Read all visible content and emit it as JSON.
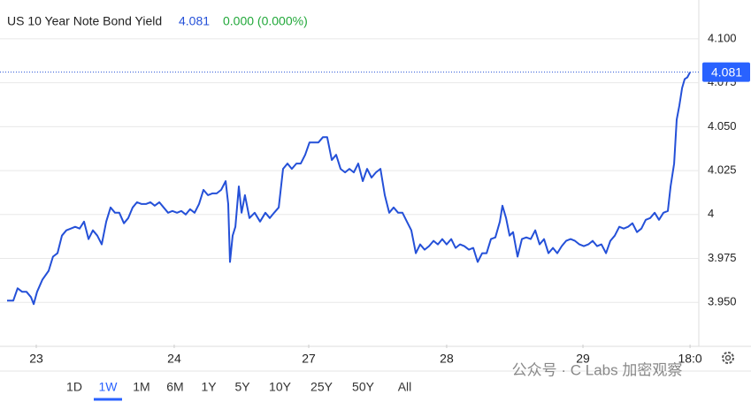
{
  "chart_data": {
    "type": "line",
    "title": "US 10 Year Note Bond Yield",
    "last_price": 4.081,
    "change": "0.000 (0.000%)",
    "x": [
      0,
      0.045,
      0.077,
      0.11,
      0.142,
      0.174,
      0.194,
      0.219,
      0.258,
      0.303,
      0.335,
      0.368,
      0.4,
      0.432,
      0.465,
      0.497,
      0.529,
      0.561,
      0.594,
      0.626,
      0.658,
      0.69,
      0.723,
      0.755,
      0.787,
      0.819,
      0.852,
      0.884,
      0.916,
      0.948,
      0.981,
      1.013,
      1.045,
      1.077,
      1.11,
      1.142,
      1.174,
      1.206,
      1.239,
      1.271,
      1.303,
      1.335,
      1.368,
      1.4,
      1.432,
      1.465,
      1.497,
      1.529,
      1.561,
      1.594,
      1.613,
      1.626,
      1.645,
      1.665,
      1.69,
      1.71,
      1.735,
      1.768,
      1.806,
      1.845,
      1.884,
      1.916,
      1.948,
      1.981,
      2.013,
      2.045,
      2.077,
      2.11,
      2.142,
      2.174,
      2.206,
      2.239,
      2.271,
      2.303,
      2.335,
      2.368,
      2.4,
      2.432,
      2.465,
      2.497,
      2.529,
      2.561,
      2.594,
      2.626,
      2.658,
      2.69,
      2.723,
      2.755,
      2.787,
      2.819,
      2.852,
      2.884,
      2.916,
      2.948,
      2.981,
      3.013,
      3.045,
      3.077,
      3.11,
      3.142,
      3.174,
      3.206,
      3.239,
      3.271,
      3.303,
      3.335,
      3.368,
      3.4,
      3.432,
      3.465,
      3.497,
      3.529,
      3.561,
      3.594,
      3.613,
      3.639,
      3.665,
      3.69,
      3.723,
      3.755,
      3.787,
      3.819,
      3.852,
      3.884,
      3.916,
      3.948,
      3.981,
      4.013,
      4.045,
      4.077,
      4.11,
      4.142,
      4.174,
      4.206,
      4.239,
      4.271,
      4.303,
      4.335,
      4.368,
      4.4,
      4.432,
      4.465,
      4.497,
      4.529,
      4.561,
      4.594,
      4.626,
      4.658,
      4.69,
      4.723,
      4.755,
      4.787,
      4.819,
      4.839,
      4.865,
      4.884,
      4.903,
      4.923,
      4.942,
      4.961,
      4.981
    ],
    "series": [
      {
        "color": "#2450d8",
        "values": [
          3.951,
          3.951,
          3.958,
          3.956,
          3.956,
          3.953,
          3.949,
          3.956,
          3.963,
          3.968,
          3.976,
          3.978,
          3.988,
          3.991,
          3.992,
          3.993,
          3.992,
          3.996,
          3.986,
          3.991,
          3.988,
          3.983,
          3.996,
          4.004,
          4.001,
          4.001,
          3.995,
          3.998,
          4.004,
          4.007,
          4.006,
          4.006,
          4.007,
          4.005,
          4.007,
          4.004,
          4.001,
          4.002,
          4.001,
          4.002,
          4.0,
          4.003,
          4.001,
          4.006,
          4.014,
          4.011,
          4.012,
          4.012,
          4.014,
          4.019,
          4.006,
          3.973,
          3.988,
          3.993,
          4.016,
          4.001,
          4.011,
          3.998,
          4.001,
          3.996,
          4.001,
          3.998,
          4.001,
          4.004,
          4.026,
          4.029,
          4.026,
          4.029,
          4.029,
          4.034,
          4.041,
          4.041,
          4.041,
          4.044,
          4.044,
          4.031,
          4.034,
          4.026,
          4.024,
          4.026,
          4.024,
          4.029,
          4.019,
          4.026,
          4.021,
          4.024,
          4.026,
          4.011,
          4.001,
          4.004,
          4.001,
          4.001,
          3.996,
          3.991,
          3.978,
          3.983,
          3.98,
          3.982,
          3.985,
          3.983,
          3.986,
          3.983,
          3.986,
          3.981,
          3.983,
          3.982,
          3.98,
          3.981,
          3.973,
          3.978,
          3.978,
          3.986,
          3.987,
          3.996,
          4.005,
          3.998,
          3.988,
          3.99,
          3.976,
          3.986,
          3.987,
          3.986,
          3.991,
          3.983,
          3.986,
          3.978,
          3.981,
          3.978,
          3.982,
          3.985,
          3.986,
          3.985,
          3.983,
          3.982,
          3.983,
          3.985,
          3.982,
          3.983,
          3.978,
          3.985,
          3.988,
          3.993,
          3.992,
          3.993,
          3.995,
          3.99,
          3.992,
          3.997,
          3.998,
          4.001,
          3.997,
          4.001,
          4.002,
          4.016,
          4.029,
          4.054,
          4.062,
          4.072,
          4.077,
          4.078,
          4.081
        ]
      }
    ],
    "xlim": [
      0,
      5.045
    ],
    "ylim": [
      3.926,
      4.112
    ],
    "xticks": [
      {
        "value": 0.213,
        "label": "23"
      },
      {
        "value": 1.219,
        "label": "24"
      },
      {
        "value": 2.2,
        "label": "27"
      },
      {
        "value": 3.206,
        "label": "28"
      },
      {
        "value": 4.2,
        "label": "29"
      },
      {
        "value": 4.981,
        "label": "18:0"
      }
    ],
    "yticks": [
      {
        "value": 3.95,
        "label": "3.950"
      },
      {
        "value": 3.975,
        "label": "3.975"
      },
      4,
      {
        "value": 4.025,
        "label": "4.025"
      },
      {
        "value": 4.05,
        "label": "4.050"
      },
      {
        "value": 4.075,
        "label": "4.075"
      },
      {
        "value": 4.1,
        "label": "4.100"
      }
    ],
    "grid": true,
    "ranges": [
      "1D",
      "1W",
      "1M",
      "6M",
      "1Y",
      "5Y",
      "10Y",
      "25Y",
      "50Y",
      "All"
    ],
    "selected_range": "1W",
    "watermark": "公众号 · C Labs 加密观察"
  }
}
